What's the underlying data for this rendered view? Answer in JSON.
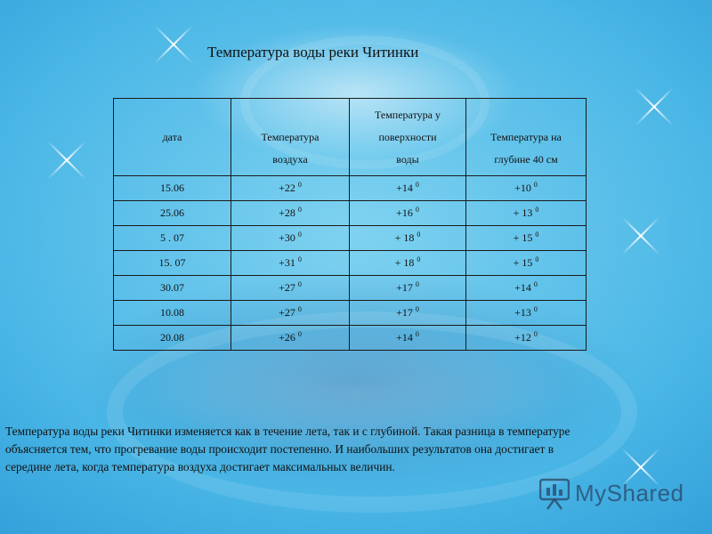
{
  "title": "Температура  воды реки Читинки",
  "table": {
    "headers": [
      [
        "дата"
      ],
      [
        "",
        "Температура",
        "воздуха"
      ],
      [
        "Температура у",
        "поверхности",
        "воды"
      ],
      [
        "",
        "Температура на",
        "глубине  40 см"
      ]
    ],
    "degree_mark": "0",
    "rows": [
      {
        "date": "15.06",
        "air": "+22",
        "surface": "+14",
        "depth": "+10"
      },
      {
        "date": "25.06",
        "air": "+28",
        "surface": "+16",
        "depth": "+ 13"
      },
      {
        "date": "5 . 07",
        "air": "+30",
        "surface": "+ 18",
        "depth": "+ 15"
      },
      {
        "date": "15. 07",
        "air": "+31",
        "surface": "+ 18",
        "depth": "+ 15"
      },
      {
        "date": "30.07",
        "air": "+27",
        "surface": "+17",
        "depth": "+14"
      },
      {
        "date": "10.08",
        "air": "+27",
        "surface": "+17",
        "depth": "+13"
      },
      {
        "date": "20.08",
        "air": "+26",
        "surface": "+14",
        "depth": "+12"
      }
    ]
  },
  "paragraph": [
    "Температура  воды реки Читинки изменяется как в течение лета, так и с глубиной. Такая разница в температуре",
    " объясняется тем, что прогревание воды происходит постепенно. И наибольших результатов она достигает в",
    "середине  лета, когда температура воздуха достигает максимальных величин."
  ],
  "logo": {
    "text": "MyShared",
    "icon": "myshared-logo-icon"
  }
}
